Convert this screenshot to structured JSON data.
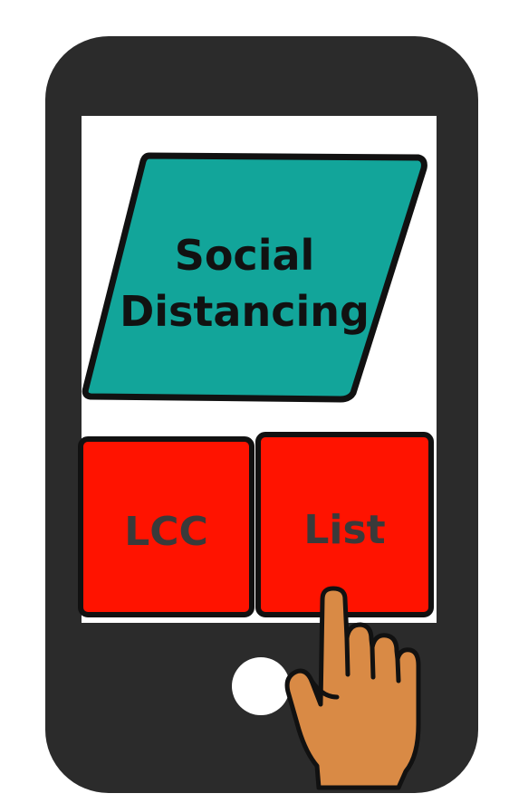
{
  "header_tile": {
    "title_line1": "Social",
    "title_line2": "Distancing"
  },
  "tiles": {
    "lcc_label": "LCC",
    "list_label": "List"
  },
  "icons": {
    "home_button": "circle-home-button-icon",
    "hand": "pointing-hand-icon"
  },
  "colors": {
    "phone_body": "#2b2b2b",
    "screen": "#ffffff",
    "teal_tile": "#12a59a",
    "red_tile": "#ff1300",
    "outline": "#111111",
    "hand_skin": "#d98a45"
  }
}
